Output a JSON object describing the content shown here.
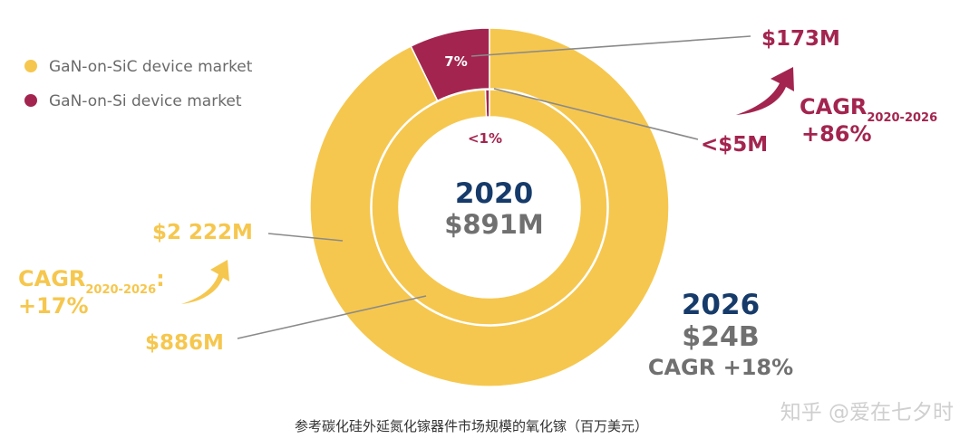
{
  "colors": {
    "yellow": "#F6C74E",
    "maroon": "#A3254F",
    "navy": "#163B6A",
    "gray": "#707070",
    "leader": "#8a8a8a"
  },
  "chart_data": [
    {
      "type": "pie",
      "ring": "inner",
      "year": "2020",
      "total_label": "$891M",
      "series": [
        {
          "name": "GaN-on-SiC device market",
          "value": 886,
          "label": "$886M",
          "color_key": "yellow"
        },
        {
          "name": "GaN-on-Si device market",
          "value": 5,
          "label": "<$5M",
          "pct_label": "<1%",
          "color_key": "maroon"
        }
      ]
    },
    {
      "type": "pie",
      "ring": "outer",
      "year": "2026",
      "total_label": "$24B",
      "series": [
        {
          "name": "GaN-on-SiC device market",
          "value": 2222,
          "label": "$2 222M",
          "color_key": "yellow"
        },
        {
          "name": "GaN-on-Si device market",
          "value": 173,
          "label": "$173M",
          "pct_label": "7%",
          "color_key": "maroon"
        }
      ]
    }
  ],
  "legend": [
    {
      "label": "GaN-on-SiC device market",
      "color_key": "yellow"
    },
    {
      "label": "GaN-on-Si device market",
      "color_key": "maroon"
    }
  ],
  "center": {
    "year": "2020",
    "value": "$891M"
  },
  "summary_2026": {
    "year": "2026",
    "value": "$24B",
    "cagr": "CAGR +18%"
  },
  "cagr_left": {
    "label": "CAGR",
    "sub": "2020-2026",
    "colon": ":",
    "value": "+17%"
  },
  "cagr_right": {
    "label": "CAGR",
    "sub": "2020-2026",
    "value": "+86%"
  },
  "caption": "参考碳化硅外延氮化镓器件市场规模的氧化镓（百万美元）",
  "watermark": "知乎 @爱在七夕时"
}
